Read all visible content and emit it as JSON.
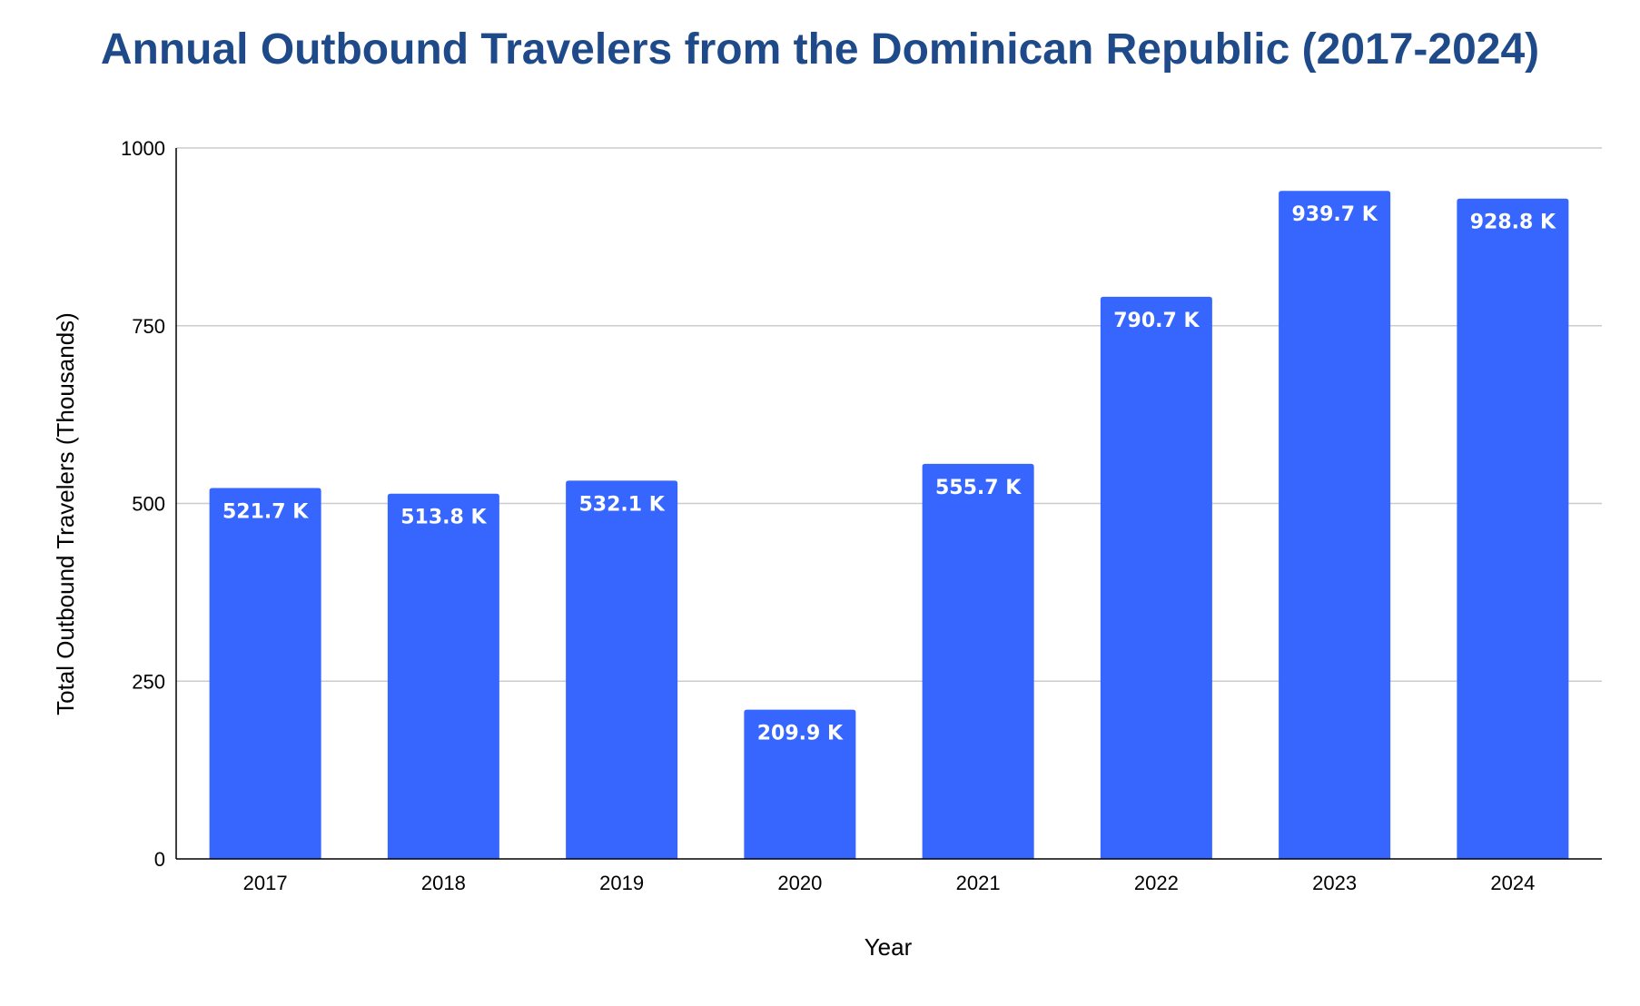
{
  "chart_data": {
    "type": "bar",
    "title": "Annual Outbound Travelers from the Dominican Republic (2017-2024)",
    "xlabel": "Year",
    "ylabel": "Total Outbound Travelers (Thousands)",
    "categories": [
      "2017",
      "2018",
      "2019",
      "2020",
      "2021",
      "2022",
      "2023",
      "2024"
    ],
    "values": [
      521.7,
      513.8,
      532.1,
      209.9,
      555.7,
      790.7,
      939.7,
      928.8
    ],
    "data_labels": [
      "521.7 K",
      "513.8 K",
      "532.1 K",
      "209.9 K",
      "555.7 K",
      "790.7 K",
      "939.7 K",
      "928.8 K"
    ],
    "ylim": [
      0,
      1000
    ],
    "yticks": [
      0,
      250,
      500,
      750,
      1000
    ],
    "ytick_labels": [
      "0",
      "250",
      "500",
      "750",
      "1000"
    ],
    "grid": true,
    "legend": "none",
    "colors": {
      "bar": "#3766FF",
      "title": "#1F4A8A",
      "grid": "#CCCCCC",
      "axis": "#000000"
    }
  }
}
